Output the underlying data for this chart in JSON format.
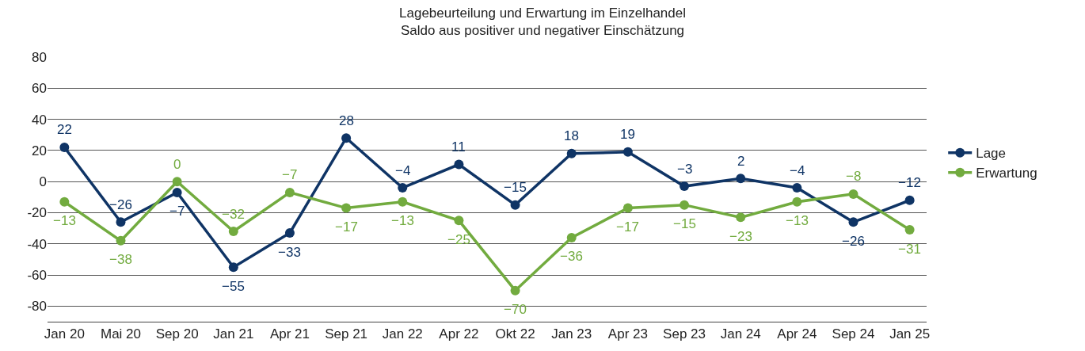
{
  "chart_data": {
    "type": "line",
    "title": "Lagebeurteilung und Erwartung im Einzelhandel",
    "subtitle": "Saldo aus positiver und negativer Einschätzung",
    "categories": [
      "Jan 20",
      "Mai 20",
      "Sep 20",
      "Jan 21",
      "Apr 21",
      "Sep 21",
      "Jan 22",
      "Apr 22",
      "Okt 22",
      "Jan 23",
      "Apr 23",
      "Sep 23",
      "Jan 24",
      "Apr 24",
      "Sep 24",
      "Jan 25"
    ],
    "series": [
      {
        "name": "Lage",
        "color": "#0f3465",
        "values": [
          22,
          -26,
          -7,
          -55,
          -33,
          28,
          -4,
          11,
          -15,
          18,
          19,
          -3,
          2,
          -4,
          -26,
          -12
        ]
      },
      {
        "name": "Erwartung",
        "color": "#72ab3f",
        "values": [
          -13,
          -38,
          0,
          -32,
          -7,
          -17,
          -13,
          -25,
          -70,
          -36,
          -17,
          -15,
          -23,
          -13,
          -8,
          -31
        ]
      }
    ],
    "ylim": [
      -90,
      80
    ],
    "yticks": [
      -80,
      -60,
      -40,
      -20,
      0,
      20,
      40,
      60,
      80
    ],
    "grid": "y",
    "legend": "right",
    "marker": "circle",
    "line_style": "solid",
    "data_labels": true
  }
}
